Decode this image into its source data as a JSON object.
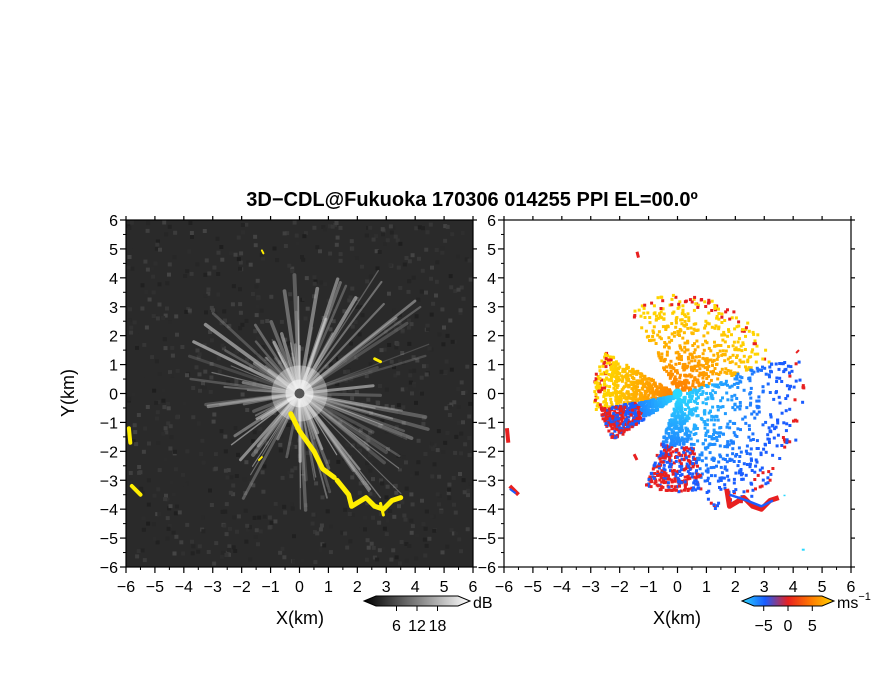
{
  "chart_data": {
    "type": "heatmap",
    "title": "3D−CDL@Fukuoka 170306 014255 PPI EL=00.0º",
    "panels": [
      {
        "name": "reflectivity",
        "xlabel": "X(km)",
        "ylabel": "Y(km)",
        "xlim": [
          -6,
          6
        ],
        "ylim": [
          -6,
          6
        ],
        "x_ticks": [
          "−6",
          "−5",
          "−4",
          "−3",
          "−2",
          "−1",
          "0",
          "1",
          "2",
          "3",
          "4",
          "5",
          "6"
        ],
        "y_ticks": [
          "6",
          "5",
          "4",
          "3",
          "2",
          "1",
          "0",
          "−1",
          "−2",
          "−3",
          "−4",
          "−5",
          "−6"
        ],
        "background_color": "#2a2a2a",
        "highlight_color": "#ffee00",
        "colorbar": {
          "unit": "dB",
          "ticks": [
            "6",
            "12",
            "18"
          ],
          "range": [
            0,
            24
          ]
        }
      },
      {
        "name": "doppler-velocity",
        "xlabel": "X(km)",
        "xlim": [
          -6,
          6
        ],
        "ylim": [
          -6,
          6
        ],
        "x_ticks": [
          "−6",
          "−5",
          "−4",
          "−3",
          "−2",
          "−1",
          "0",
          "1",
          "2",
          "3",
          "4",
          "5",
          "6"
        ],
        "y_ticks": [
          "6",
          "5",
          "4",
          "3",
          "2",
          "1",
          "0",
          "−1",
          "−2",
          "−3",
          "−4",
          "−5",
          "−6"
        ],
        "colorbar": {
          "unit": "ms",
          "unit_superscript": "−1",
          "ticks": [
            "−5",
            "0",
            "5"
          ],
          "range": [
            -7,
            7
          ]
        }
      }
    ],
    "colors": {
      "approach": "#1a5cff",
      "approach_light": "#2ad8ff",
      "recede": "#ff7a00",
      "recede_light": "#ffd400",
      "edge": "#e82020"
    }
  }
}
